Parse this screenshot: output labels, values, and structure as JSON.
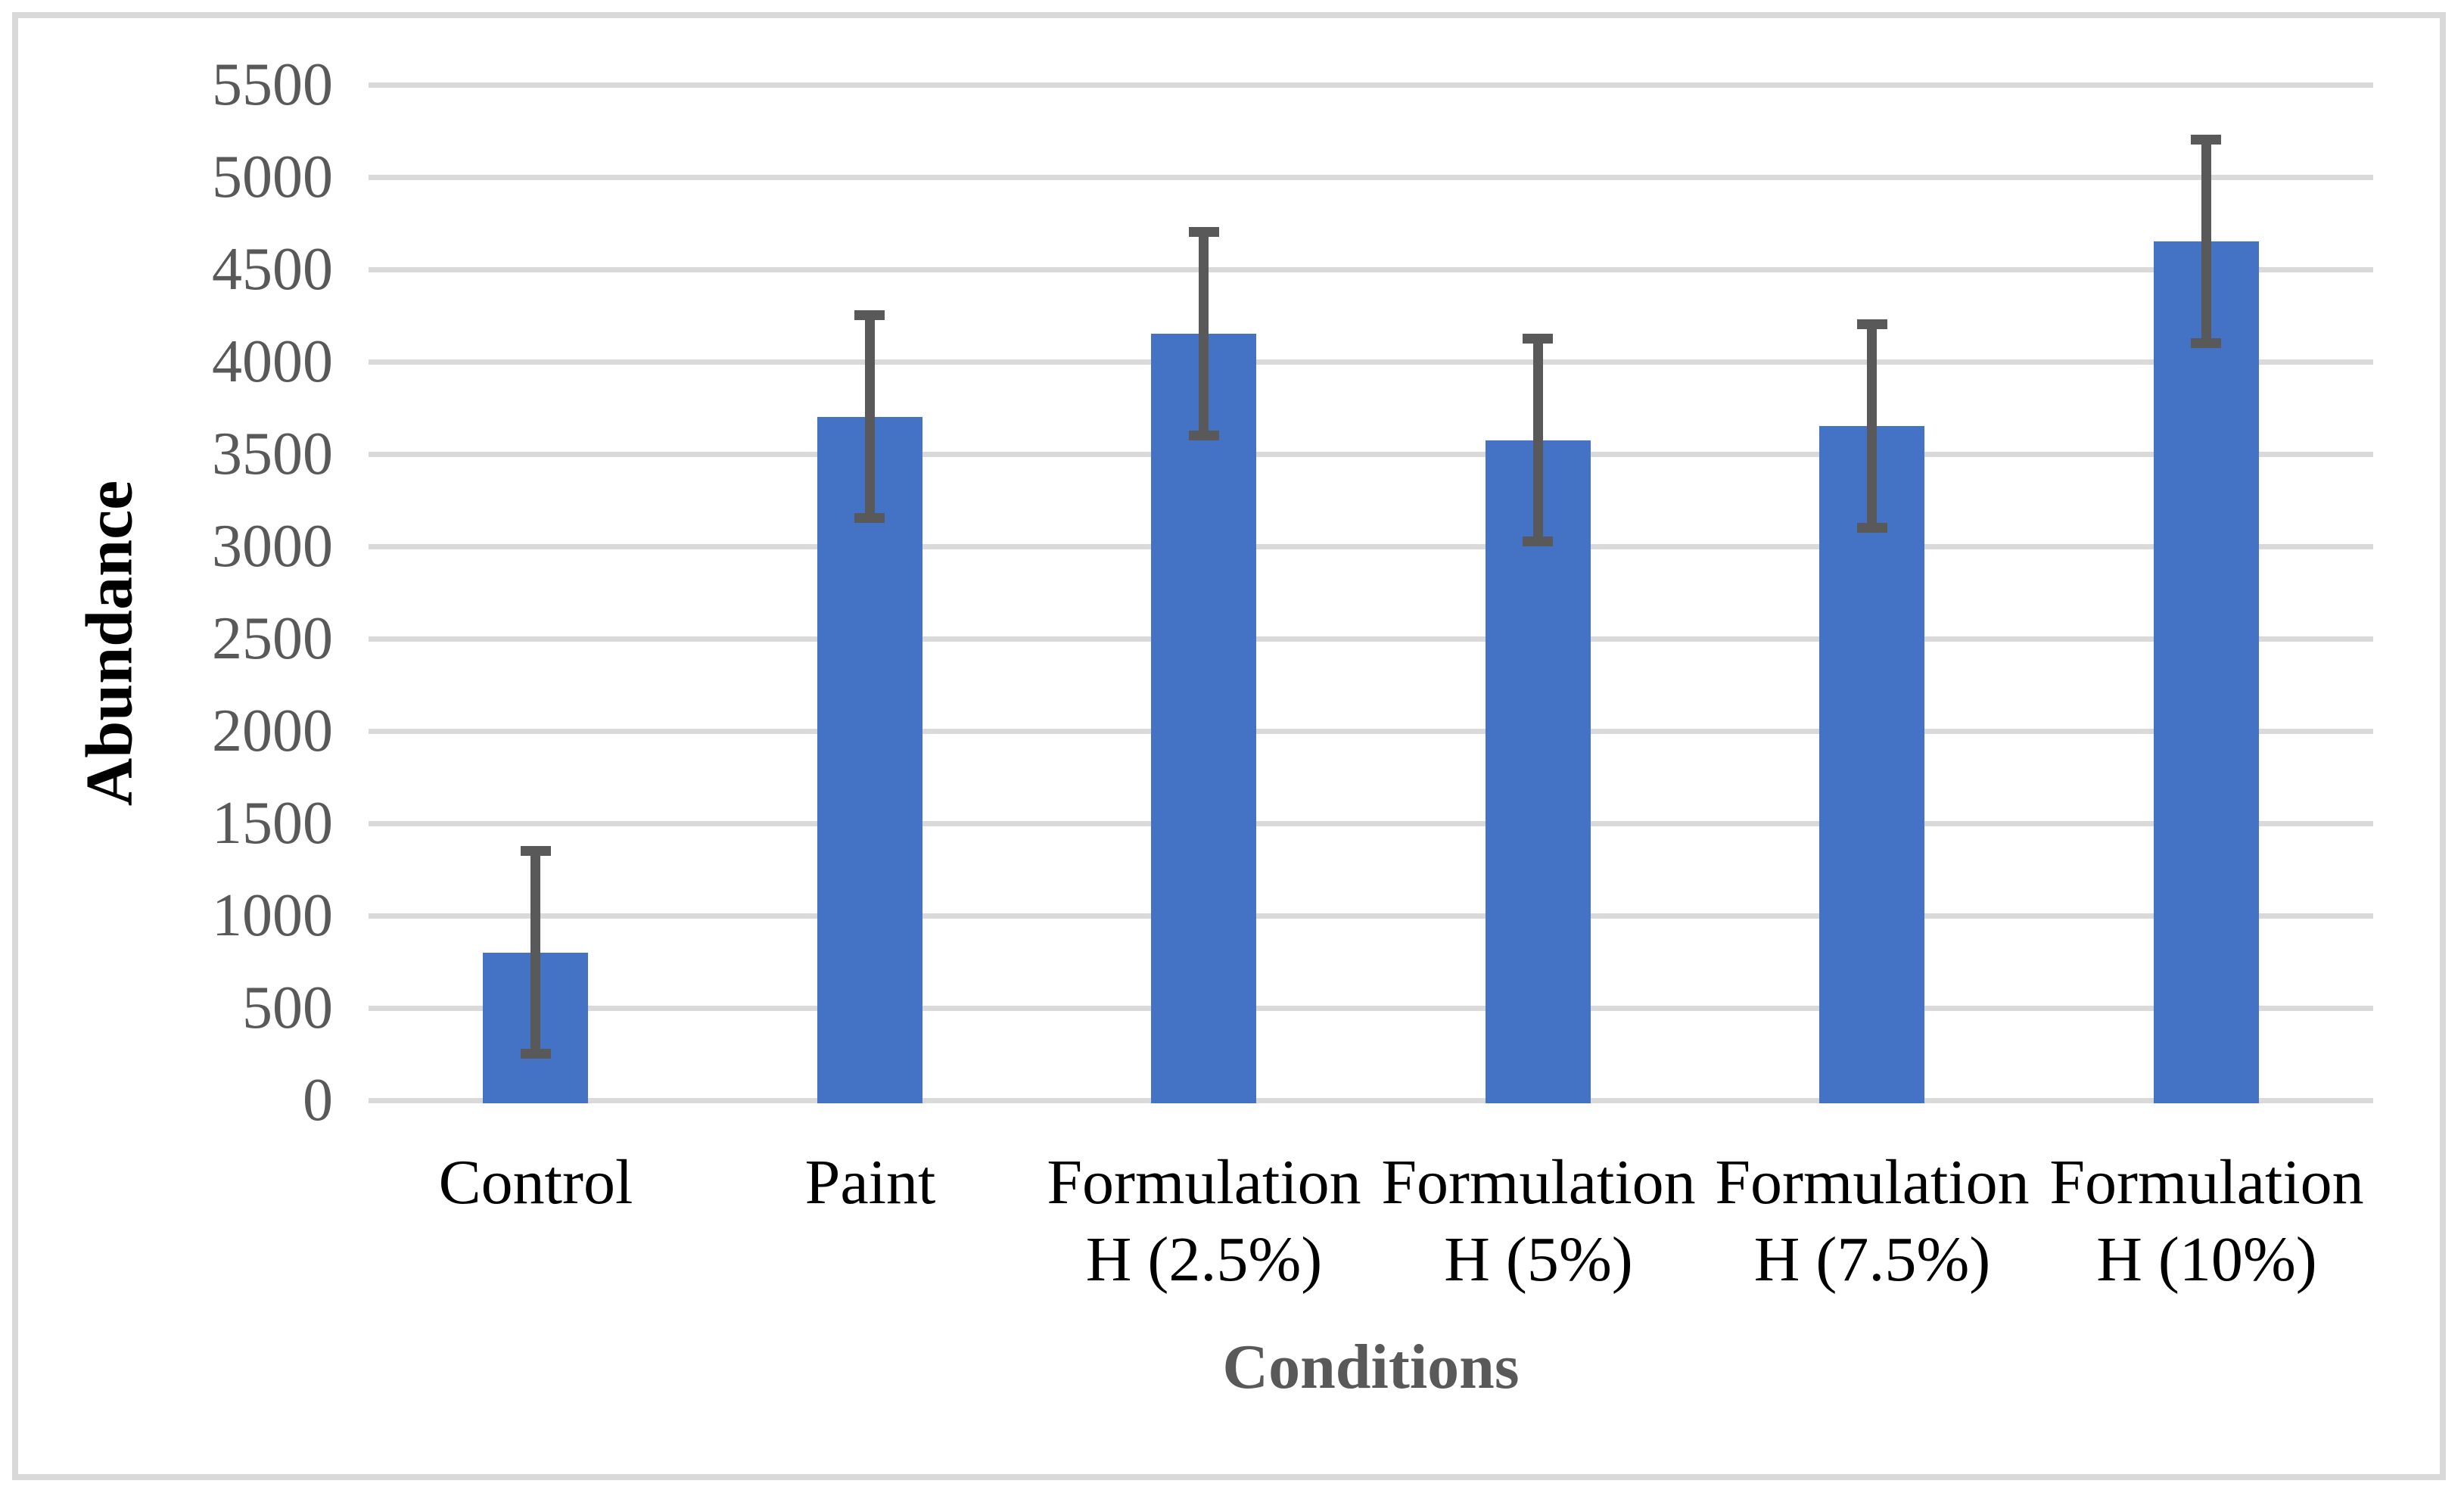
{
  "chart_data": {
    "type": "bar",
    "title": "",
    "xlabel": "Conditions",
    "ylabel": "Abundance",
    "categories": [
      "Control",
      "Paint",
      "Formulation H (2.5%)",
      "Formulation H (5%)",
      "Formulation H (7.5%)",
      "Formulation H (10%)"
    ],
    "category_lines": [
      [
        "Control"
      ],
      [
        "Paint"
      ],
      [
        "Formulation",
        "H (2.5%)"
      ],
      [
        "Formulation",
        "H (5%)"
      ],
      [
        "Formulation",
        "H (7.5%)"
      ],
      [
        "Formulation",
        "H (10%)"
      ]
    ],
    "values": [
      800,
      3700,
      4150,
      3575,
      3650,
      4650
    ],
    "error_bars": [
      550,
      550,
      550,
      550,
      550,
      550
    ],
    "error_bar_tops": [
      1350,
      4250,
      4700,
      4125,
      4200,
      5200
    ],
    "error_bar_bottoms": [
      250,
      3150,
      3600,
      3025,
      3100,
      4100
    ],
    "ylim": [
      0,
      5500
    ],
    "ytick_step": 500,
    "ytick_labels": [
      "0",
      "500",
      "1000",
      "1500",
      "2000",
      "2500",
      "3000",
      "3500",
      "4000",
      "4500",
      "5000",
      "5500"
    ],
    "grid": "horizontal",
    "legend": false,
    "colors": {
      "bar": "#4472C4",
      "error_bar": "#595959",
      "gridline": "#D9D9D9",
      "frame_border": "#D9D9D9",
      "y_tick_text": "#595959",
      "x_tick_text": "#000000",
      "x_axis_title_text": "#595959",
      "y_axis_title_text": "#000000",
      "background": "#FFFFFF"
    }
  }
}
